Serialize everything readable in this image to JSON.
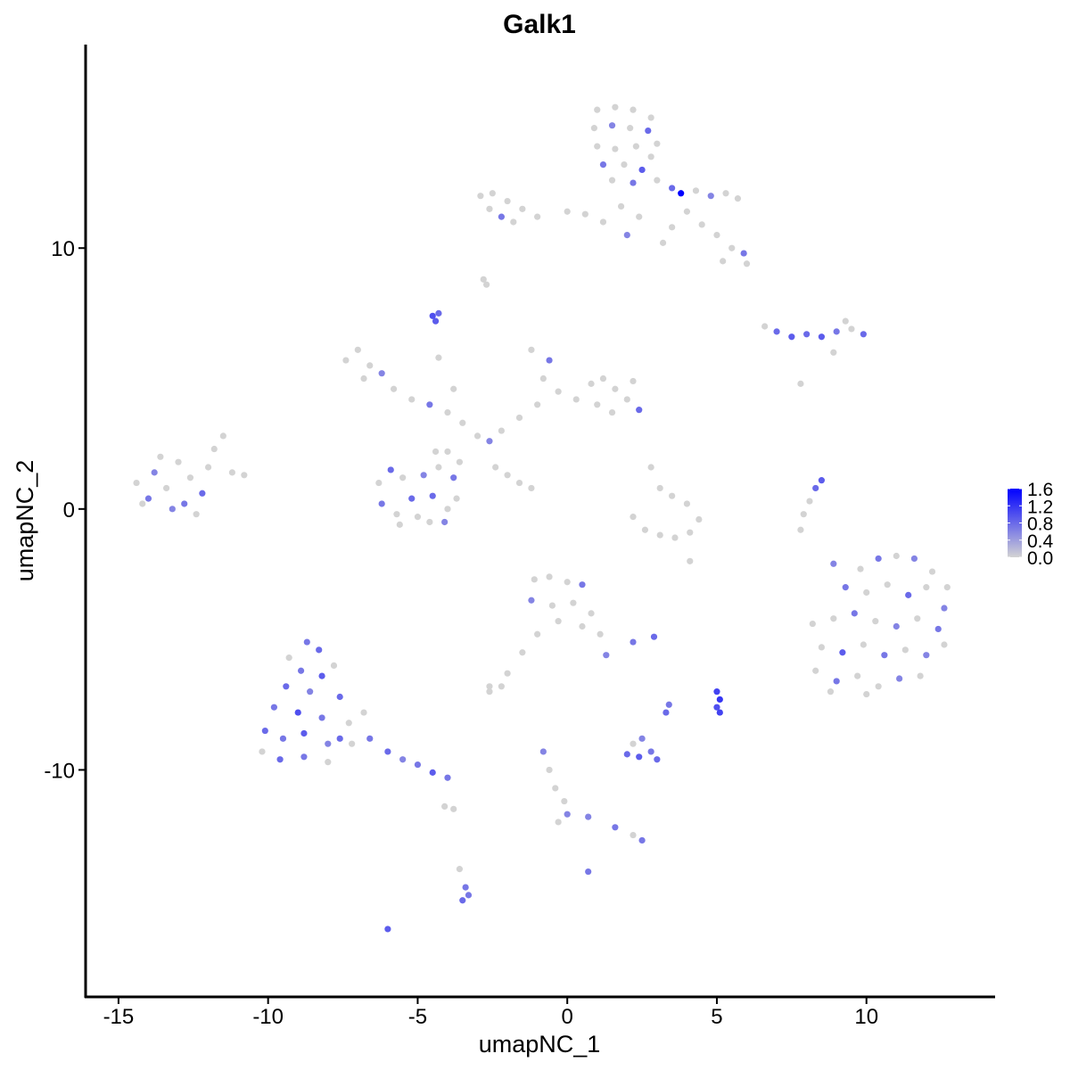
{
  "chart_data": {
    "type": "scatter",
    "title": "Galk1",
    "xlabel": "umapNC_1",
    "ylabel": "umapNC_2",
    "xlim": [
      -16.1,
      14.3
    ],
    "ylim": [
      -18.7,
      17.8
    ],
    "xticks": [
      -15,
      -10,
      -5,
      0,
      5,
      10
    ],
    "yticks": [
      -10,
      0,
      10
    ],
    "grid": false,
    "color_scale": {
      "low": "#d3d3d3",
      "high": "#0000ff",
      "min": 0,
      "max": 1.6,
      "ticks": [
        "1.6",
        "1.2",
        "0.8",
        "0.4",
        "0.0"
      ],
      "tick_values": [
        1.6,
        1.2,
        0.8,
        0.4,
        0.0
      ]
    },
    "legend_position": "right",
    "point_fields": [
      "x",
      "y",
      "expression"
    ],
    "points": [
      [
        1.0,
        15.3,
        0
      ],
      [
        1.6,
        15.4,
        0
      ],
      [
        2.2,
        15.3,
        0
      ],
      [
        2.8,
        15.0,
        0
      ],
      [
        0.9,
        14.6,
        0
      ],
      [
        1.5,
        14.7,
        0.6
      ],
      [
        2.1,
        14.6,
        0
      ],
      [
        2.7,
        14.5,
        0.8
      ],
      [
        3.0,
        14.0,
        0
      ],
      [
        1.0,
        13.9,
        0
      ],
      [
        1.6,
        13.8,
        0
      ],
      [
        2.3,
        13.9,
        0
      ],
      [
        2.8,
        13.5,
        0
      ],
      [
        1.2,
        13.2,
        0.7
      ],
      [
        1.9,
        13.2,
        0
      ],
      [
        2.5,
        13.0,
        0.9
      ],
      [
        1.5,
        12.6,
        0
      ],
      [
        2.2,
        12.5,
        0.7
      ],
      [
        3.0,
        12.6,
        0
      ],
      [
        3.5,
        12.3,
        0.8
      ],
      [
        3.8,
        12.1,
        1.6
      ],
      [
        4.3,
        12.2,
        0
      ],
      [
        4.8,
        12.0,
        0.6
      ],
      [
        5.3,
        12.1,
        0
      ],
      [
        5.7,
        11.9,
        0
      ],
      [
        4.0,
        11.4,
        0
      ],
      [
        4.5,
        10.9,
        0
      ],
      [
        5.0,
        10.5,
        0
      ],
      [
        5.5,
        10.0,
        0
      ],
      [
        5.9,
        9.8,
        0.7
      ],
      [
        5.2,
        9.5,
        0
      ],
      [
        6.0,
        9.4,
        0
      ],
      [
        3.5,
        10.8,
        0
      ],
      [
        1.8,
        11.6,
        0
      ],
      [
        2.4,
        11.2,
        0
      ],
      [
        1.2,
        11.0,
        0
      ],
      [
        0.6,
        11.3,
        0
      ],
      [
        0.0,
        11.4,
        0
      ],
      [
        2.0,
        10.5,
        0.6
      ],
      [
        3.2,
        10.2,
        0
      ],
      [
        -2.9,
        12.0,
        0
      ],
      [
        -2.5,
        12.1,
        0
      ],
      [
        -2.0,
        11.8,
        0
      ],
      [
        -2.6,
        11.5,
        0
      ],
      [
        -1.5,
        11.5,
        0
      ],
      [
        -1.0,
        11.2,
        0
      ],
      [
        -2.2,
        11.2,
        0.7
      ],
      [
        -1.8,
        11.0,
        0
      ],
      [
        -2.8,
        8.8,
        0
      ],
      [
        -2.7,
        8.6,
        0
      ],
      [
        -4.5,
        7.4,
        1.0
      ],
      [
        -4.4,
        7.2,
        0.9
      ],
      [
        -4.3,
        7.5,
        0.8
      ],
      [
        -7.4,
        5.7,
        0
      ],
      [
        -7.0,
        6.1,
        0
      ],
      [
        -6.6,
        5.5,
        0
      ],
      [
        -6.2,
        5.2,
        0.6
      ],
      [
        -6.8,
        5.0,
        0
      ],
      [
        -5.8,
        4.6,
        0
      ],
      [
        -5.2,
        4.2,
        0
      ],
      [
        -4.6,
        4.0,
        0.7
      ],
      [
        -4.0,
        3.7,
        0
      ],
      [
        -3.5,
        3.3,
        0
      ],
      [
        -3.0,
        2.8,
        0
      ],
      [
        -2.6,
        2.6,
        0.6
      ],
      [
        -3.8,
        4.6,
        0
      ],
      [
        -4.3,
        5.8,
        0
      ],
      [
        -4.0,
        2.2,
        0
      ],
      [
        -2.2,
        3.0,
        0
      ],
      [
        -1.6,
        3.5,
        0
      ],
      [
        -1.0,
        4.0,
        0
      ],
      [
        -0.8,
        5.0,
        0
      ],
      [
        -1.2,
        6.1,
        0
      ],
      [
        -0.6,
        5.7,
        0.7
      ],
      [
        -0.3,
        4.5,
        0
      ],
      [
        0.3,
        4.2,
        0
      ],
      [
        0.8,
        4.8,
        0
      ],
      [
        1.2,
        5.0,
        0
      ],
      [
        1.6,
        4.6,
        0
      ],
      [
        2.0,
        4.2,
        0
      ],
      [
        2.4,
        3.8,
        0.8
      ],
      [
        1.5,
        3.7,
        0
      ],
      [
        2.2,
        4.9,
        0
      ],
      [
        1.0,
        4.0,
        0
      ],
      [
        -6.3,
        1.0,
        0
      ],
      [
        -5.9,
        1.5,
        0.8
      ],
      [
        -5.5,
        1.2,
        0
      ],
      [
        -6.2,
        0.2,
        0.7
      ],
      [
        -5.7,
        -0.2,
        0
      ],
      [
        -5.2,
        0.4,
        0.8
      ],
      [
        -5.6,
        -0.6,
        0
      ],
      [
        -4.8,
        1.3,
        0.6
      ],
      [
        -4.3,
        1.6,
        0
      ],
      [
        -3.8,
        1.2,
        0.7
      ],
      [
        -4.5,
        0.5,
        0.8
      ],
      [
        -4.0,
        0.0,
        0
      ],
      [
        -3.7,
        0.4,
        0
      ],
      [
        -4.6,
        -0.5,
        0
      ],
      [
        -4.1,
        -0.5,
        0.6
      ],
      [
        -5.0,
        -0.3,
        0
      ],
      [
        -4.4,
        2.2,
        0
      ],
      [
        -3.6,
        1.8,
        0
      ],
      [
        -2.4,
        1.6,
        0
      ],
      [
        -2.0,
        1.3,
        0
      ],
      [
        -1.6,
        1.0,
        0
      ],
      [
        -1.2,
        0.8,
        0
      ],
      [
        -14.4,
        1.0,
        0
      ],
      [
        -14.0,
        0.4,
        0.7
      ],
      [
        -13.8,
        1.4,
        0.6
      ],
      [
        -13.4,
        0.8,
        0
      ],
      [
        -13.0,
        1.8,
        0
      ],
      [
        -12.8,
        0.2,
        0.7
      ],
      [
        -12.6,
        1.2,
        0
      ],
      [
        -12.2,
        0.6,
        0.8
      ],
      [
        -12.0,
        1.6,
        0
      ],
      [
        -11.8,
        2.3,
        0
      ],
      [
        -11.5,
        2.8,
        0
      ],
      [
        -11.2,
        1.4,
        0
      ],
      [
        -10.8,
        1.3,
        0
      ],
      [
        -13.6,
        2.0,
        0
      ],
      [
        -12.4,
        -0.2,
        0
      ],
      [
        -14.2,
        0.2,
        0
      ],
      [
        -13.2,
        0.0,
        0.6
      ],
      [
        -8.7,
        -5.1,
        0.7
      ],
      [
        -8.3,
        -5.4,
        0.8
      ],
      [
        -9.3,
        -5.7,
        0
      ],
      [
        -8.9,
        -6.2,
        0.7
      ],
      [
        -8.2,
        -6.4,
        0.9
      ],
      [
        -7.8,
        -6.0,
        0
      ],
      [
        -9.4,
        -6.8,
        0.8
      ],
      [
        -8.6,
        -7.0,
        0.6
      ],
      [
        -7.6,
        -7.2,
        0.8
      ],
      [
        -9.8,
        -7.6,
        0.7
      ],
      [
        -9.0,
        -7.8,
        1.0
      ],
      [
        -8.2,
        -8.0,
        0.7
      ],
      [
        -7.3,
        -8.2,
        0
      ],
      [
        -10.1,
        -8.5,
        0.8
      ],
      [
        -9.5,
        -8.8,
        0.7
      ],
      [
        -8.8,
        -8.6,
        0.9
      ],
      [
        -8.0,
        -9.0,
        0.6
      ],
      [
        -7.2,
        -9.0,
        0
      ],
      [
        -6.6,
        -8.8,
        0.7
      ],
      [
        -10.2,
        -9.3,
        0
      ],
      [
        -9.6,
        -9.6,
        0.8
      ],
      [
        -8.8,
        -9.5,
        0.7
      ],
      [
        -8.0,
        -9.7,
        0
      ],
      [
        -6.0,
        -9.3,
        0.8
      ],
      [
        -5.5,
        -9.6,
        0.6
      ],
      [
        -5.0,
        -9.8,
        0.7
      ],
      [
        -4.5,
        -10.1,
        0.9
      ],
      [
        -4.0,
        -10.3,
        0.7
      ],
      [
        -6.8,
        -7.8,
        0
      ],
      [
        -7.6,
        -8.8,
        0.8
      ],
      [
        9.8,
        -2.3,
        0
      ],
      [
        10.4,
        -1.9,
        0.7
      ],
      [
        11.0,
        -1.8,
        0
      ],
      [
        11.6,
        -1.9,
        0.6
      ],
      [
        12.2,
        -2.4,
        0
      ],
      [
        12.7,
        -3.0,
        0
      ],
      [
        9.3,
        -3.0,
        0.7
      ],
      [
        10.0,
        -3.2,
        0
      ],
      [
        10.7,
        -2.9,
        0
      ],
      [
        11.4,
        -3.3,
        0.8
      ],
      [
        12.0,
        -3.0,
        0
      ],
      [
        12.6,
        -3.8,
        0.6
      ],
      [
        8.2,
        -4.4,
        0
      ],
      [
        8.9,
        -4.2,
        0
      ],
      [
        9.6,
        -4.0,
        0.7
      ],
      [
        10.3,
        -4.3,
        0
      ],
      [
        11.0,
        -4.5,
        0.6
      ],
      [
        11.7,
        -4.2,
        0
      ],
      [
        12.4,
        -4.6,
        0.7
      ],
      [
        8.5,
        -5.3,
        0
      ],
      [
        9.2,
        -5.5,
        0.9
      ],
      [
        9.9,
        -5.2,
        0
      ],
      [
        10.6,
        -5.6,
        0.7
      ],
      [
        11.3,
        -5.4,
        0
      ],
      [
        12.0,
        -5.6,
        0.6
      ],
      [
        12.6,
        -5.2,
        0
      ],
      [
        8.3,
        -6.2,
        0
      ],
      [
        9.0,
        -6.6,
        0.7
      ],
      [
        9.7,
        -6.4,
        0
      ],
      [
        10.4,
        -6.8,
        0
      ],
      [
        11.1,
        -6.5,
        0.6
      ],
      [
        11.8,
        -6.4,
        0
      ],
      [
        8.8,
        -7.0,
        0
      ],
      [
        10.0,
        -7.1,
        0
      ],
      [
        8.9,
        -2.1,
        0.6
      ],
      [
        6.6,
        7.0,
        0
      ],
      [
        7.0,
        6.8,
        0.8
      ],
      [
        7.5,
        6.6,
        0.9
      ],
      [
        8.0,
        6.7,
        0.8
      ],
      [
        8.5,
        6.6,
        0.9
      ],
      [
        9.0,
        6.8,
        0.7
      ],
      [
        9.5,
        6.9,
        0
      ],
      [
        9.9,
        6.7,
        0.8
      ],
      [
        9.3,
        7.2,
        0
      ],
      [
        8.9,
        6.0,
        0
      ],
      [
        7.8,
        4.8,
        0
      ],
      [
        8.5,
        1.1,
        0.9
      ],
      [
        8.3,
        0.8,
        0.8
      ],
      [
        8.1,
        0.3,
        0
      ],
      [
        7.9,
        -0.2,
        0
      ],
      [
        7.8,
        -0.8,
        0
      ],
      [
        2.8,
        1.6,
        0
      ],
      [
        3.1,
        0.8,
        0
      ],
      [
        3.5,
        0.5,
        0
      ],
      [
        2.2,
        -0.3,
        0
      ],
      [
        2.6,
        -0.8,
        0
      ],
      [
        3.1,
        -1.0,
        0
      ],
      [
        3.6,
        -1.1,
        0
      ],
      [
        4.1,
        -0.9,
        0
      ],
      [
        4.4,
        -0.4,
        0
      ],
      [
        4.0,
        0.2,
        0
      ],
      [
        4.1,
        -2.0,
        0
      ],
      [
        -1.1,
        -2.7,
        0
      ],
      [
        -0.6,
        -2.6,
        0
      ],
      [
        0.0,
        -2.8,
        0
      ],
      [
        0.5,
        -2.9,
        0.7
      ],
      [
        -1.2,
        -3.5,
        0.6
      ],
      [
        -0.5,
        -3.7,
        0
      ],
      [
        0.2,
        -3.6,
        0
      ],
      [
        0.8,
        -4.0,
        0
      ],
      [
        -0.3,
        -4.3,
        0
      ],
      [
        0.5,
        -4.5,
        0
      ],
      [
        1.1,
        -4.8,
        0
      ],
      [
        1.3,
        -5.6,
        0.6
      ],
      [
        -1.0,
        -4.8,
        0
      ],
      [
        -1.5,
        -5.5,
        0
      ],
      [
        -2.0,
        -6.3,
        0
      ],
      [
        -2.6,
        -6.8,
        0
      ],
      [
        -2.2,
        -6.8,
        0
      ],
      [
        -2.6,
        -7.0,
        0
      ],
      [
        2.2,
        -5.1,
        0.7
      ],
      [
        2.9,
        -4.9,
        0.8
      ],
      [
        5.0,
        -7.0,
        1.1
      ],
      [
        5.1,
        -7.3,
        1.2
      ],
      [
        5.0,
        -7.6,
        1.0
      ],
      [
        5.1,
        -7.8,
        1.1
      ],
      [
        3.4,
        -7.5,
        0.7
      ],
      [
        3.3,
        -7.8,
        0.8
      ],
      [
        2.0,
        -9.4,
        0.8
      ],
      [
        2.4,
        -9.5,
        0.9
      ],
      [
        2.8,
        -9.3,
        0.7
      ],
      [
        2.2,
        -9.0,
        0
      ],
      [
        3.0,
        -9.6,
        0.8
      ],
      [
        2.5,
        -8.8,
        0.6
      ],
      [
        -0.8,
        -9.3,
        0.6
      ],
      [
        -0.6,
        -10.0,
        0
      ],
      [
        -0.4,
        -10.7,
        0
      ],
      [
        -0.1,
        -11.2,
        0
      ],
      [
        0.0,
        -11.7,
        0.6
      ],
      [
        -0.3,
        -12.0,
        0
      ],
      [
        0.7,
        -11.8,
        0.6
      ],
      [
        1.6,
        -12.2,
        0.7
      ],
      [
        2.2,
        -12.5,
        0
      ],
      [
        2.5,
        -12.7,
        0.7
      ],
      [
        0.7,
        -13.9,
        0.7
      ],
      [
        -3.6,
        -13.8,
        0
      ],
      [
        -3.4,
        -14.5,
        0.7
      ],
      [
        -3.5,
        -15.0,
        0.8
      ],
      [
        -3.3,
        -14.8,
        0.7
      ],
      [
        -6.0,
        -16.1,
        0.9
      ],
      [
        -4.1,
        -11.4,
        0
      ],
      [
        -3.8,
        -11.5,
        0
      ]
    ]
  }
}
